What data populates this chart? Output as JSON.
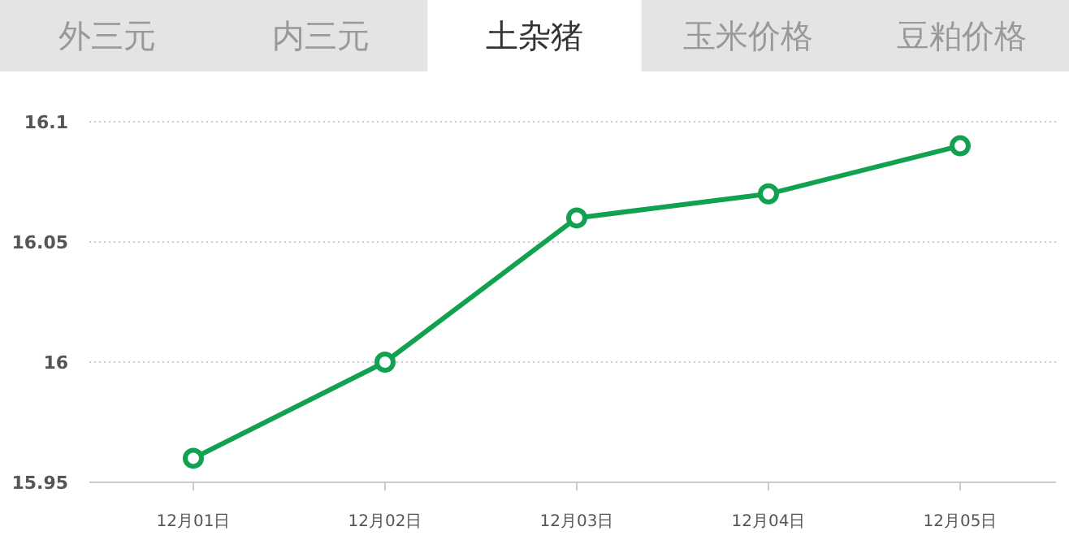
{
  "chart_data": {
    "type": "line",
    "categories": [
      "12月01日",
      "12月02日",
      "12月03日",
      "12月04日",
      "12月05日"
    ],
    "series": [
      {
        "color": "#12a150",
        "values": [
          15.96,
          16,
          16.06,
          16.07,
          16.09
        ]
      }
    ],
    "ylim": [
      15.95,
      16.1
    ],
    "yticks": [
      15.95,
      16,
      16.05,
      16.1
    ],
    "grid": "y",
    "marker": "circle",
    "line_style": "solid",
    "annotations": [
      "外三元",
      "内三元",
      "土杂猪",
      "玉米价格",
      "豆粕价格"
    ]
  }
}
